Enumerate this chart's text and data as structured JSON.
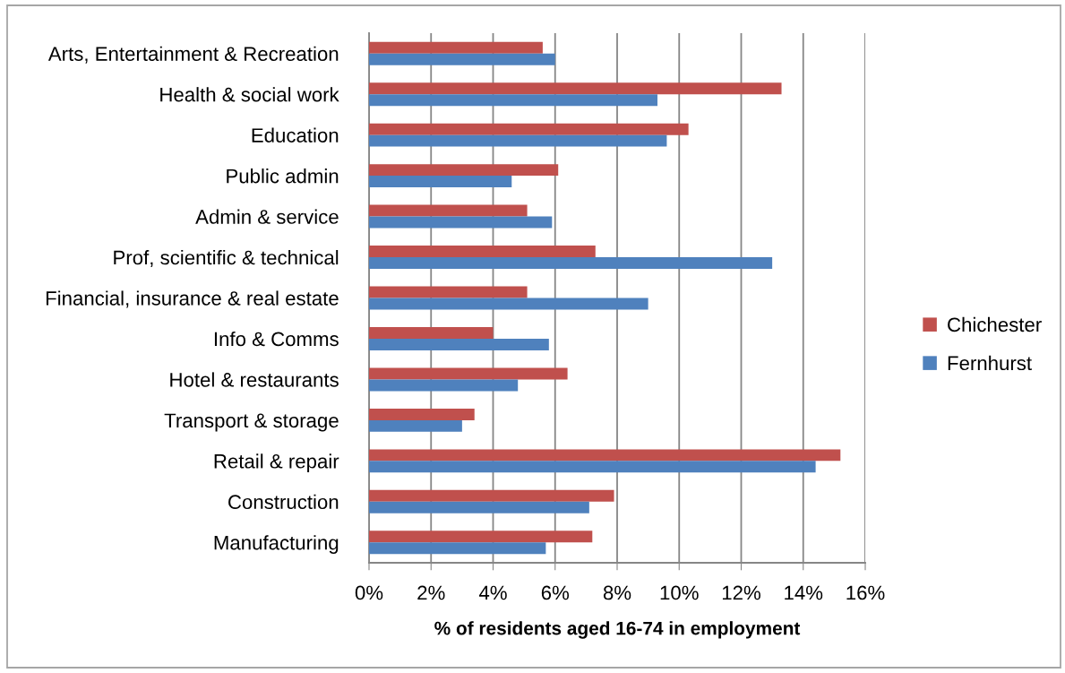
{
  "chart_data": {
    "type": "bar",
    "orientation": "horizontal",
    "xlabel": "% of residents aged 16-74 in employment",
    "categories": [
      "Arts, Entertainment & Recreation",
      "Health & social work",
      "Education",
      "Public admin",
      "Admin & service",
      "Prof, scientific & technical",
      "Financial, insurance & real estate",
      "Info & Comms",
      "Hotel & restaurants",
      "Transport & storage",
      "Retail & repair",
      "Construction",
      "Manufacturing"
    ],
    "series": [
      {
        "name": "Chichester",
        "color": "#c0504d",
        "values": [
          5.6,
          13.3,
          10.3,
          6.1,
          5.1,
          7.3,
          5.1,
          4.0,
          6.4,
          3.4,
          15.2,
          7.9,
          7.2
        ]
      },
      {
        "name": "Fernhurst",
        "color": "#4f81bd",
        "values": [
          6.0,
          9.3,
          9.6,
          4.6,
          5.9,
          13.0,
          9.0,
          5.8,
          4.8,
          3.0,
          14.4,
          7.1,
          5.7
        ]
      }
    ],
    "xlim": [
      0,
      16
    ],
    "xticks": [
      {
        "value": 0,
        "label": "0%"
      },
      {
        "value": 2,
        "label": "2%"
      },
      {
        "value": 4,
        "label": "4%"
      },
      {
        "value": 6,
        "label": "6%"
      },
      {
        "value": 8,
        "label": "8%"
      },
      {
        "value": 10,
        "label": "10%"
      },
      {
        "value": 12,
        "label": "12%"
      },
      {
        "value": 14,
        "label": "14%"
      },
      {
        "value": 16,
        "label": "16%"
      }
    ],
    "grid": "x",
    "legend": "right"
  }
}
